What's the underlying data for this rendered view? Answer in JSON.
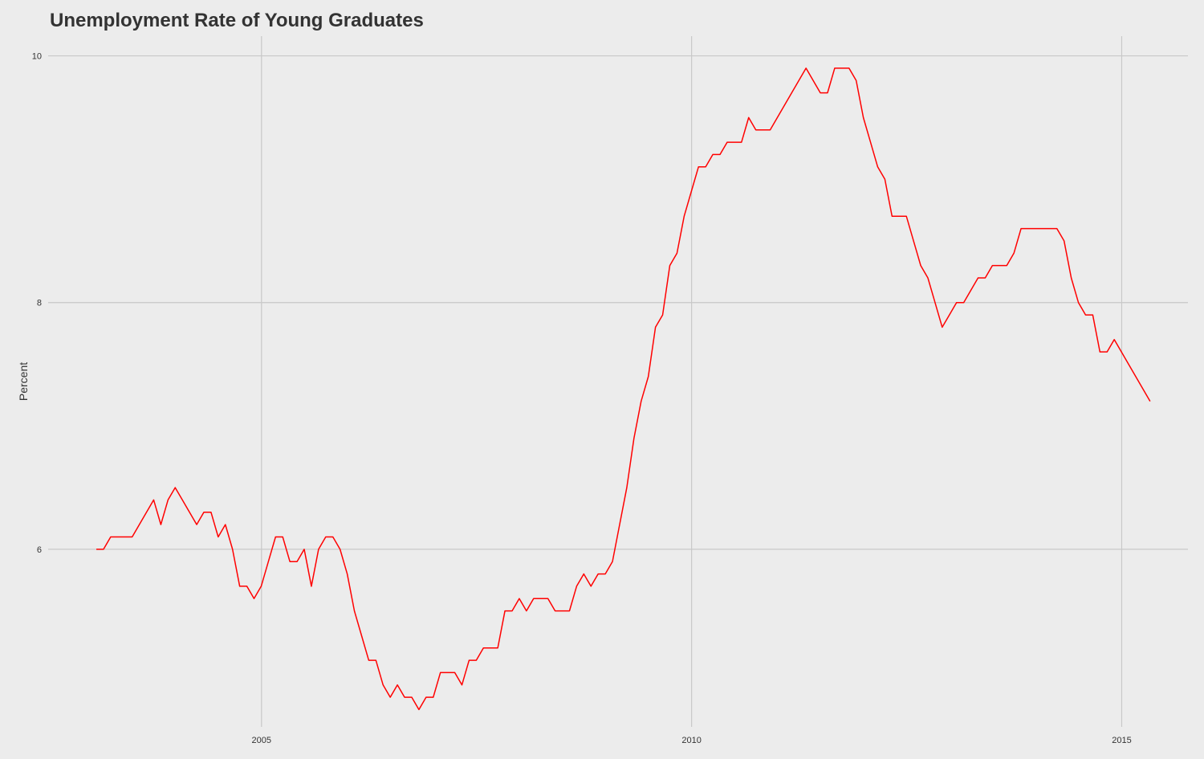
{
  "chart_data": {
    "type": "line",
    "title": "Unemployment Rate of Young Graduates",
    "xlabel": "",
    "ylabel": "Percent",
    "x_ticks": [
      "2005",
      "2010",
      "2015"
    ],
    "y_ticks": [
      "6",
      "8",
      "10"
    ],
    "xlim": [
      2002.52,
      2015.77
    ],
    "ylim": [
      4.56,
      10.16
    ],
    "grid": true,
    "legend": "none",
    "line_color": "#ff0000",
    "series": [
      {
        "x_start": 2003.08,
        "x_step_months": 1,
        "values": [
          6.0,
          6.0,
          6.1,
          6.1,
          6.1,
          6.1,
          6.2,
          6.3,
          6.4,
          6.2,
          6.4,
          6.5,
          6.4,
          6.3,
          6.2,
          6.3,
          6.3,
          6.1,
          6.2,
          6.0,
          5.7,
          5.7,
          5.6,
          5.7,
          5.9,
          6.1,
          6.1,
          5.9,
          5.9,
          6.0,
          5.7,
          6.0,
          6.1,
          6.1,
          6.0,
          5.8,
          5.5,
          5.3,
          5.1,
          5.1,
          4.9,
          4.8,
          4.9,
          4.8,
          4.8,
          4.7,
          4.8,
          4.8,
          5.0,
          5.0,
          5.0,
          4.9,
          5.1,
          5.1,
          5.2,
          5.2,
          5.2,
          5.5,
          5.5,
          5.6,
          5.5,
          5.6,
          5.6,
          5.6,
          5.5,
          5.5,
          5.5,
          5.7,
          5.8,
          5.7,
          5.8,
          5.8,
          5.9,
          6.2,
          6.5,
          6.9,
          7.2,
          7.4,
          7.8,
          7.9,
          8.3,
          8.4,
          8.7,
          8.9,
          9.1,
          9.1,
          9.2,
          9.2,
          9.3,
          9.3,
          9.3,
          9.5,
          9.4,
          9.4,
          9.4,
          9.5,
          9.6,
          9.7,
          9.8,
          9.9,
          9.8,
          9.7,
          9.7,
          9.9,
          9.9,
          9.9,
          9.8,
          9.5,
          9.3,
          9.1,
          9.0,
          8.7,
          8.7,
          8.7,
          8.5,
          8.3,
          8.2,
          8.0,
          7.8,
          7.9,
          8.0,
          8.0,
          8.1,
          8.2,
          8.2,
          8.3,
          8.3,
          8.3,
          8.4,
          8.6,
          8.6,
          8.6,
          8.6,
          8.6,
          8.6,
          8.5,
          8.2,
          8.0,
          7.9,
          7.9,
          7.6,
          7.6,
          7.7,
          7.6,
          7.5,
          7.4,
          7.3,
          7.2
        ]
      }
    ]
  }
}
